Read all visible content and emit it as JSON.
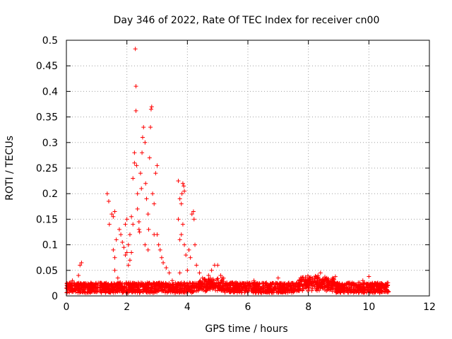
{
  "chart_data": {
    "type": "scatter",
    "title": "Day 346 of 2022, Rate Of TEC Index for receiver cn00",
    "xlabel": "GPS time / hours",
    "ylabel": "ROTI / TECUs",
    "xlim": [
      0,
      12
    ],
    "ylim": [
      0,
      0.5
    ],
    "xticks": [
      0,
      2,
      4,
      6,
      8,
      10,
      12
    ],
    "yticks": [
      0,
      0.05,
      0.1,
      0.15,
      0.2,
      0.25,
      0.3,
      0.35,
      0.4,
      0.45,
      0.5
    ],
    "xtick_labels": [
      "0",
      "2",
      "4",
      "6",
      "8",
      "10",
      "12"
    ],
    "ytick_labels": [
      "0",
      "0.05",
      "0.1",
      "0.15",
      "0.2",
      "0.25",
      "0.3",
      "0.35",
      "0.4",
      "0.45",
      "0.5"
    ],
    "grid": true,
    "marker": "+",
    "color": "#ff0000",
    "series": [
      {
        "name": "cn00",
        "points": [
          [
            0.05,
            0.015
          ],
          [
            0.1,
            0.02
          ],
          [
            0.15,
            0.01
          ],
          [
            0.2,
            0.03
          ],
          [
            0.3,
            0.012
          ],
          [
            0.4,
            0.04
          ],
          [
            0.45,
            0.06
          ],
          [
            0.5,
            0.065
          ],
          [
            0.55,
            0.02
          ],
          [
            0.7,
            0.015
          ],
          [
            1.0,
            0.012
          ],
          [
            1.2,
            0.02
          ],
          [
            1.35,
            0.2
          ],
          [
            1.4,
            0.185
          ],
          [
            1.42,
            0.14
          ],
          [
            1.5,
            0.16
          ],
          [
            1.55,
            0.155
          ],
          [
            1.6,
            0.165
          ],
          [
            1.6,
            0.075
          ],
          [
            1.65,
            0.11
          ],
          [
            1.55,
            0.09
          ],
          [
            1.6,
            0.05
          ],
          [
            1.7,
            0.035
          ],
          [
            1.75,
            0.13
          ],
          [
            1.8,
            0.12
          ],
          [
            1.85,
            0.105
          ],
          [
            1.9,
            0.095
          ],
          [
            1.95,
            0.08
          ],
          [
            1.95,
            0.14
          ],
          [
            2.0,
            0.085
          ],
          [
            2.0,
            0.15
          ],
          [
            2.05,
            0.1
          ],
          [
            2.1,
            0.12
          ],
          [
            2.1,
            0.07
          ],
          [
            2.15,
            0.155
          ],
          [
            2.2,
            0.23
          ],
          [
            2.25,
            0.26
          ],
          [
            2.25,
            0.28
          ],
          [
            2.3,
            0.41
          ],
          [
            2.28,
            0.483
          ],
          [
            2.3,
            0.362
          ],
          [
            2.32,
            0.255
          ],
          [
            2.35,
            0.2
          ],
          [
            2.35,
            0.17
          ],
          [
            2.4,
            0.145
          ],
          [
            2.42,
            0.125
          ],
          [
            2.45,
            0.24
          ],
          [
            2.48,
            0.21
          ],
          [
            2.5,
            0.28
          ],
          [
            2.52,
            0.31
          ],
          [
            2.55,
            0.33
          ],
          [
            2.6,
            0.3
          ],
          [
            2.62,
            0.22
          ],
          [
            2.65,
            0.19
          ],
          [
            2.7,
            0.16
          ],
          [
            2.72,
            0.13
          ],
          [
            2.75,
            0.27
          ],
          [
            2.78,
            0.33
          ],
          [
            2.8,
            0.365
          ],
          [
            2.82,
            0.37
          ],
          [
            2.85,
            0.2
          ],
          [
            2.9,
            0.18
          ],
          [
            2.95,
            0.24
          ],
          [
            3.0,
            0.255
          ],
          [
            3.0,
            0.12
          ],
          [
            3.05,
            0.1
          ],
          [
            3.1,
            0.09
          ],
          [
            3.15,
            0.075
          ],
          [
            3.2,
            0.065
          ],
          [
            3.3,
            0.055
          ],
          [
            3.4,
            0.045
          ],
          [
            3.5,
            0.03
          ],
          [
            3.6,
            0.015
          ],
          [
            2.2,
            0.14
          ],
          [
            2.4,
            0.13
          ],
          [
            2.6,
            0.1
          ],
          [
            2.7,
            0.09
          ],
          [
            2.9,
            0.12
          ],
          [
            2.05,
            0.06
          ],
          [
            2.15,
            0.085
          ],
          [
            3.7,
            0.225
          ],
          [
            3.75,
            0.19
          ],
          [
            3.8,
            0.18
          ],
          [
            3.82,
            0.2
          ],
          [
            3.85,
            0.22
          ],
          [
            3.88,
            0.215
          ],
          [
            3.9,
            0.205
          ],
          [
            3.7,
            0.15
          ],
          [
            3.75,
            0.11
          ],
          [
            3.8,
            0.12
          ],
          [
            3.85,
            0.14
          ],
          [
            3.9,
            0.1
          ],
          [
            3.95,
            0.08
          ],
          [
            3.75,
            0.045
          ],
          [
            4.0,
            0.05
          ],
          [
            4.05,
            0.09
          ],
          [
            4.1,
            0.075
          ],
          [
            4.15,
            0.16
          ],
          [
            4.2,
            0.165
          ],
          [
            4.22,
            0.15
          ],
          [
            4.25,
            0.1
          ],
          [
            4.3,
            0.06
          ],
          [
            4.4,
            0.045
          ],
          [
            4.5,
            0.035
          ],
          [
            4.6,
            0.03
          ],
          [
            4.7,
            0.04
          ],
          [
            4.8,
            0.05
          ],
          [
            4.9,
            0.06
          ],
          [
            5.0,
            0.06
          ],
          [
            5.1,
            0.04
          ],
          [
            5.2,
            0.02
          ],
          [
            5.5,
            0.012
          ],
          [
            5.8,
            0.015
          ],
          [
            6.0,
            0.02
          ],
          [
            6.2,
            0.03
          ],
          [
            6.5,
            0.015
          ],
          [
            7.0,
            0.035
          ],
          [
            7.5,
            0.02
          ],
          [
            8.0,
            0.03
          ],
          [
            8.2,
            0.035
          ],
          [
            8.4,
            0.045
          ],
          [
            8.6,
            0.03
          ],
          [
            8.8,
            0.035
          ],
          [
            9.0,
            0.02
          ],
          [
            9.5,
            0.02
          ],
          [
            9.8,
            0.03
          ],
          [
            10.0,
            0.038
          ],
          [
            10.2,
            0.02
          ],
          [
            10.5,
            0.015
          ],
          [
            10.6,
            0.012
          ]
        ]
      }
    ]
  }
}
